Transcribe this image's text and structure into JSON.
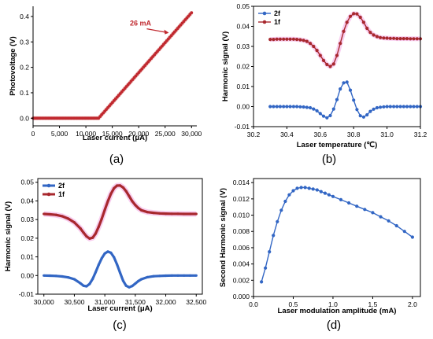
{
  "colors": {
    "red": "#C0282E",
    "dark_red": "#A8282E",
    "blue": "#3266C4",
    "pink_shadow": "#F2A6E2",
    "axis": "#000000"
  },
  "panels": {
    "a": {
      "label": "(a)"
    },
    "b": {
      "label": "(b)"
    },
    "c": {
      "label": "(c)"
    },
    "d": {
      "label": "(d)"
    }
  },
  "chart_data": [
    {
      "id": "a",
      "type": "line",
      "xlabel": "Laser current (μA)",
      "ylabel": "Photovoltage (V)",
      "xlim": [
        0,
        31000
      ],
      "ylim": [
        -0.03,
        0.44
      ],
      "xticks": [
        0,
        5000,
        10000,
        15000,
        20000,
        25000,
        30000
      ],
      "xtick_labels": [
        "0",
        "5,000",
        "10,000",
        "15,000",
        "20,000",
        "25,000",
        "30,000"
      ],
      "yticks": [
        0.0,
        0.1,
        0.2,
        0.3,
        0.4
      ],
      "ytick_labels": [
        "0.0",
        "0.1",
        "0.2",
        "0.3",
        "0.4"
      ],
      "annotation": {
        "text": "26 mA",
        "x": 26000,
        "y": 0.333
      },
      "series": [
        {
          "color": "#C0282E",
          "segments": [
            [
              0,
              0.0
            ],
            [
              12400,
              0.0
            ],
            [
              30000,
              0.415
            ]
          ]
        }
      ]
    },
    {
      "id": "b",
      "type": "line",
      "xlabel": "Laser temperature (℃)",
      "ylabel": "Harmonic signal (V)",
      "xlim": [
        30.2,
        31.2
      ],
      "ylim": [
        -0.01,
        0.05
      ],
      "xticks": [
        30.2,
        30.4,
        30.6,
        30.8,
        31.0,
        31.2
      ],
      "xtick_labels": [
        "30.2",
        "30.4",
        "30.6",
        "30.8",
        "31.0",
        "31.2"
      ],
      "yticks": [
        -0.01,
        0.0,
        0.01,
        0.02,
        0.03,
        0.04,
        0.05
      ],
      "ytick_labels": [
        "-0.01",
        "0.00",
        "0.01",
        "0.02",
        "0.03",
        "0.04",
        "0.05"
      ],
      "legend": "top-left",
      "series": [
        {
          "name": "2f",
          "color": "#3266C4",
          "x": [
            30.3,
            30.32,
            30.34,
            30.36,
            30.38,
            30.4,
            30.42,
            30.44,
            30.46,
            30.48,
            30.5,
            30.52,
            30.54,
            30.56,
            30.58,
            30.6,
            30.62,
            30.64,
            30.66,
            30.68,
            30.7,
            30.72,
            30.74,
            30.76,
            30.78,
            30.8,
            30.82,
            30.84,
            30.86,
            30.88,
            30.9,
            30.92,
            30.94,
            30.96,
            30.98,
            31.0,
            31.02,
            31.04,
            31.06,
            31.08,
            31.1,
            31.12,
            31.14,
            31.16,
            31.18,
            31.2
          ],
          "y": [
            0.0,
            0.0,
            0.0,
            0.0,
            0.0,
            0.0,
            0.0,
            0.0,
            0.0,
            -0.0001,
            -0.0002,
            -0.0004,
            -0.0006,
            -0.0012,
            -0.0021,
            -0.0035,
            -0.0048,
            -0.0056,
            -0.0045,
            -0.0012,
            0.0035,
            0.0088,
            0.0118,
            0.0122,
            0.0082,
            0.0032,
            -0.0015,
            -0.0046,
            -0.0052,
            -0.0041,
            -0.0024,
            -0.0013,
            -0.0006,
            -0.0003,
            -0.0001,
            0.0,
            0.0,
            0.0,
            0.0,
            0.0,
            0.0,
            0.0,
            0.0,
            0.0,
            0.0,
            0.0
          ]
        },
        {
          "name": "1f",
          "color": "#A8282E",
          "x": [
            30.3,
            30.32,
            30.34,
            30.36,
            30.38,
            30.4,
            30.42,
            30.44,
            30.46,
            30.48,
            30.5,
            30.52,
            30.54,
            30.56,
            30.58,
            30.6,
            30.62,
            30.64,
            30.66,
            30.68,
            30.7,
            30.72,
            30.74,
            30.76,
            30.78,
            30.8,
            30.82,
            30.84,
            30.86,
            30.88,
            30.9,
            30.92,
            30.94,
            30.96,
            30.98,
            31.0,
            31.02,
            31.04,
            31.06,
            31.08,
            31.1,
            31.12,
            31.14,
            31.16,
            31.18,
            31.2
          ],
          "y": [
            0.0335,
            0.0335,
            0.0336,
            0.0336,
            0.0336,
            0.0336,
            0.0336,
            0.0336,
            0.0335,
            0.0333,
            0.033,
            0.0325,
            0.0315,
            0.03,
            0.028,
            0.0255,
            0.023,
            0.021,
            0.02,
            0.0212,
            0.0255,
            0.0315,
            0.0375,
            0.042,
            0.045,
            0.0463,
            0.0462,
            0.0445,
            0.042,
            0.039,
            0.037,
            0.0357,
            0.0349,
            0.0344,
            0.0342,
            0.0341,
            0.034,
            0.034,
            0.0339,
            0.0339,
            0.0339,
            0.0339,
            0.0338,
            0.0338,
            0.0338,
            0.0338
          ]
        }
      ]
    },
    {
      "id": "c",
      "type": "line",
      "xlabel": "Laser current (μA)",
      "ylabel": "Harmonic signal (V)",
      "xlim": [
        29900,
        32600
      ],
      "ylim": [
        -0.01,
        0.052
      ],
      "xticks": [
        30000,
        30500,
        31000,
        31500,
        32000,
        32500
      ],
      "xtick_labels": [
        "30,000",
        "30,500",
        "31,000",
        "31,500",
        "32,000",
        "32,500"
      ],
      "yticks": [
        -0.01,
        0.0,
        0.01,
        0.02,
        0.03,
        0.04,
        0.05
      ],
      "ytick_labels": [
        "-0.01",
        "0.00",
        "0.01",
        "0.02",
        "0.03",
        "0.04",
        "0.05"
      ],
      "legend": "top-left",
      "series": [
        {
          "name": "2f",
          "color": "#3266C4",
          "x": [
            30000,
            30100,
            30200,
            30300,
            30400,
            30500,
            30600,
            30650,
            30700,
            30750,
            30800,
            30850,
            30900,
            30950,
            31000,
            31050,
            31100,
            31150,
            31200,
            31250,
            31300,
            31350,
            31400,
            31450,
            31500,
            31550,
            31600,
            31700,
            31800,
            31900,
            32000,
            32100,
            32200,
            32300,
            32400,
            32500
          ],
          "y": [
            0.0,
            -0.0001,
            -0.0002,
            -0.0005,
            -0.001,
            -0.002,
            -0.0042,
            -0.0055,
            -0.0058,
            -0.0045,
            -0.0018,
            0.0018,
            0.0058,
            0.0093,
            0.0118,
            0.0128,
            0.0122,
            0.0098,
            0.006,
            0.0015,
            -0.0028,
            -0.0055,
            -0.0063,
            -0.0056,
            -0.0043,
            -0.003,
            -0.002,
            -0.0009,
            -0.0004,
            -0.0002,
            -0.0001,
            0.0,
            0.0,
            0.0,
            0.0,
            0.0
          ]
        },
        {
          "name": "1f",
          "color": "#A8282E",
          "x": [
            30000,
            30100,
            30200,
            30300,
            30400,
            30500,
            30600,
            30650,
            30700,
            30750,
            30800,
            30850,
            30900,
            30950,
            31000,
            31050,
            31100,
            31150,
            31200,
            31250,
            31300,
            31350,
            31400,
            31450,
            31500,
            31550,
            31600,
            31700,
            31800,
            31900,
            32000,
            32100,
            32200,
            32300,
            32400,
            32500
          ],
          "y": [
            0.033,
            0.0328,
            0.0325,
            0.0318,
            0.0305,
            0.0285,
            0.0252,
            0.023,
            0.021,
            0.0198,
            0.0203,
            0.0225,
            0.0262,
            0.0305,
            0.0352,
            0.0398,
            0.0438,
            0.0468,
            0.0482,
            0.0483,
            0.0472,
            0.0452,
            0.0425,
            0.0398,
            0.0378,
            0.0362,
            0.035,
            0.034,
            0.0336,
            0.0333,
            0.0332,
            0.0331,
            0.0331,
            0.033,
            0.033,
            0.033
          ]
        }
      ]
    },
    {
      "id": "d",
      "type": "line",
      "xlabel": "Laser modulation amplitude (mA)",
      "ylabel": "Second Harmonic signal (V)",
      "xlim": [
        0,
        2.1
      ],
      "ylim": [
        0.0,
        0.0145
      ],
      "xticks": [
        0.0,
        0.5,
        1.0,
        1.5,
        2.0
      ],
      "xtick_labels": [
        "0.0",
        "0.5",
        "1.0",
        "1.5",
        "2.0"
      ],
      "yticks": [
        0.0,
        0.002,
        0.004,
        0.006,
        0.008,
        0.01,
        0.012,
        0.014
      ],
      "ytick_labels": [
        "0.000",
        "0.002",
        "0.004",
        "0.006",
        "0.008",
        "0.010",
        "0.012",
        "0.014"
      ],
      "series": [
        {
          "color": "#3266C4",
          "x": [
            0.1,
            0.15,
            0.2,
            0.25,
            0.3,
            0.35,
            0.4,
            0.45,
            0.5,
            0.55,
            0.6,
            0.65,
            0.7,
            0.75,
            0.8,
            0.85,
            0.9,
            0.95,
            1.0,
            1.1,
            1.2,
            1.3,
            1.4,
            1.5,
            1.6,
            1.7,
            1.8,
            1.9,
            2.0
          ],
          "y": [
            0.0018,
            0.0035,
            0.0055,
            0.0075,
            0.0092,
            0.0106,
            0.0117,
            0.0125,
            0.013,
            0.0133,
            0.0134,
            0.0134,
            0.0133,
            0.0132,
            0.0131,
            0.0129,
            0.0127,
            0.0125,
            0.0123,
            0.0119,
            0.0115,
            0.0111,
            0.0107,
            0.0103,
            0.0098,
            0.0093,
            0.0087,
            0.008,
            0.0073
          ]
        }
      ]
    }
  ]
}
